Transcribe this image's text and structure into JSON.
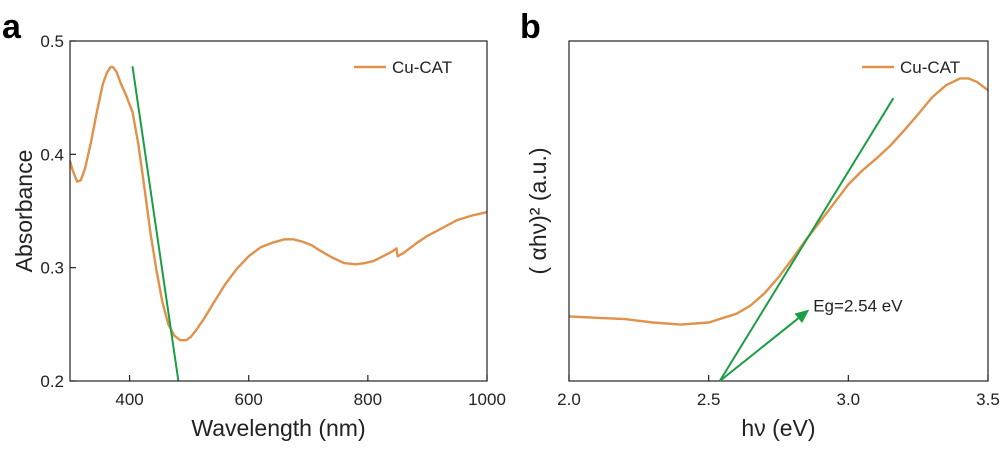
{
  "chart_data": [
    {
      "panel": "a",
      "type": "line",
      "title": "",
      "xlabel": "Wavelength (nm)",
      "ylabel": "Absorbance",
      "xlim": [
        300,
        1000
      ],
      "ylim": [
        0.2,
        0.5
      ],
      "xticks": [
        400,
        600,
        800,
        1000
      ],
      "xtick_labels": [
        "400",
        "600",
        "800",
        "1000"
      ],
      "yticks": [
        0.2,
        0.3,
        0.4,
        0.5
      ],
      "ytick_labels": [
        "0.2",
        "0.3",
        "0.4",
        "0.5"
      ],
      "grid": false,
      "legend": "top-right",
      "series": [
        {
          "name": "Cu-CAT",
          "color": "#e0914a",
          "x": [
            300,
            305,
            312,
            318,
            325,
            335,
            345,
            355,
            362,
            368,
            372,
            378,
            385,
            395,
            405,
            415,
            425,
            435,
            445,
            455,
            465,
            475,
            485,
            495,
            503,
            512,
            525,
            540,
            560,
            580,
            600,
            620,
            640,
            660,
            675,
            690,
            705,
            720,
            740,
            760,
            780,
            795,
            810,
            825,
            840,
            848,
            850,
            860,
            880,
            900,
            925,
            950,
            975,
            1000
          ],
          "y": [
            0.394,
            0.385,
            0.376,
            0.377,
            0.387,
            0.41,
            0.437,
            0.462,
            0.472,
            0.477,
            0.477,
            0.473,
            0.463,
            0.451,
            0.437,
            0.408,
            0.37,
            0.331,
            0.298,
            0.27,
            0.25,
            0.24,
            0.236,
            0.236,
            0.239,
            0.245,
            0.255,
            0.268,
            0.285,
            0.299,
            0.31,
            0.318,
            0.322,
            0.325,
            0.325,
            0.323,
            0.32,
            0.315,
            0.309,
            0.304,
            0.303,
            0.304,
            0.306,
            0.31,
            0.314,
            0.317,
            0.31,
            0.313,
            0.321,
            0.328,
            0.335,
            0.342,
            0.346,
            0.349
          ]
        },
        {
          "name": "tangent",
          "color": "#1a9e43",
          "x": [
            405,
            482
          ],
          "y": [
            0.477,
            0.2
          ]
        }
      ]
    },
    {
      "panel": "b",
      "type": "line",
      "title": "",
      "xlabel": "hν (eV)",
      "ylabel": "( αhν)² (a.u.)",
      "xlim": [
        2.0,
        3.5
      ],
      "ylim": [
        0,
        1
      ],
      "xticks": [
        2.0,
        2.5,
        3.0,
        3.5
      ],
      "xtick_labels": [
        "2.0",
        "2.5",
        "3.0",
        "3.5"
      ],
      "yticks": [],
      "grid": false,
      "legend": "top-right",
      "annotation": {
        "text": "Eg=2.54 eV",
        "arrow_from": [
          2.54,
          0
        ],
        "arrow_to": [
          2.86,
          0.21
        ]
      },
      "series": [
        {
          "name": "Cu-CAT",
          "color": "#e0914a",
          "x": [
            2.0,
            2.1,
            2.2,
            2.3,
            2.4,
            2.5,
            2.6,
            2.65,
            2.7,
            2.75,
            2.8,
            2.85,
            2.9,
            2.95,
            3.0,
            3.05,
            3.1,
            3.15,
            3.2,
            3.25,
            3.3,
            3.35,
            3.4,
            3.43,
            3.46,
            3.5
          ],
          "y": [
            0.19,
            0.186,
            0.182,
            0.172,
            0.166,
            0.172,
            0.198,
            0.222,
            0.258,
            0.305,
            0.36,
            0.417,
            0.47,
            0.524,
            0.578,
            0.619,
            0.654,
            0.692,
            0.737,
            0.785,
            0.834,
            0.87,
            0.89,
            0.89,
            0.88,
            0.855
          ]
        },
        {
          "name": "tangent",
          "color": "#1a9e43",
          "x": [
            2.54,
            3.16
          ],
          "y": [
            0.0,
            0.83
          ]
        }
      ]
    }
  ]
}
